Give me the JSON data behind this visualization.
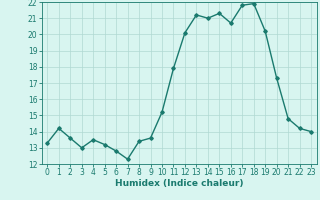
{
  "x": [
    0,
    1,
    2,
    3,
    4,
    5,
    6,
    7,
    8,
    9,
    10,
    11,
    12,
    13,
    14,
    15,
    16,
    17,
    18,
    19,
    20,
    21,
    22,
    23
  ],
  "y": [
    13.3,
    14.2,
    13.6,
    13.0,
    13.5,
    13.2,
    12.8,
    12.3,
    13.4,
    13.6,
    15.2,
    17.9,
    20.1,
    21.2,
    21.0,
    21.3,
    20.7,
    21.8,
    21.9,
    20.2,
    17.3,
    14.8,
    14.2,
    14.0
  ],
  "line_color": "#1a7a6e",
  "marker": "D",
  "marker_size": 1.8,
  "line_width": 1.0,
  "bg_color": "#d8f5f0",
  "grid_color": "#b0d9d3",
  "xlabel": "Humidex (Indice chaleur)",
  "xlabel_fontsize": 6.5,
  "tick_fontsize": 5.5,
  "ylim": [
    12,
    22
  ],
  "xlim": [
    -0.5,
    23.5
  ],
  "yticks": [
    12,
    13,
    14,
    15,
    16,
    17,
    18,
    19,
    20,
    21,
    22
  ],
  "xticks": [
    0,
    1,
    2,
    3,
    4,
    5,
    6,
    7,
    8,
    9,
    10,
    11,
    12,
    13,
    14,
    15,
    16,
    17,
    18,
    19,
    20,
    21,
    22,
    23
  ]
}
